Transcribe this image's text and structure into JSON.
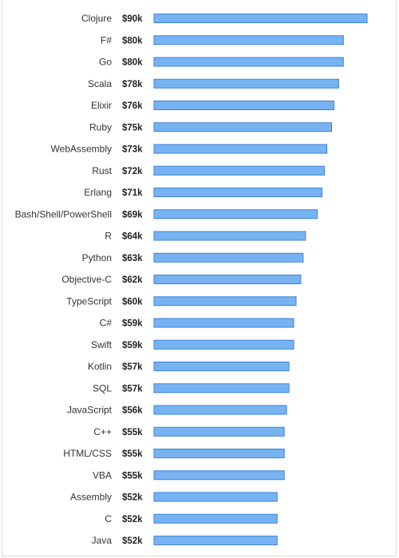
{
  "chart_data": {
    "type": "bar",
    "orientation": "horizontal",
    "categories": [
      "Clojure",
      "F#",
      "Go",
      "Scala",
      "Elixir",
      "Ruby",
      "WebAssembly",
      "Rust",
      "Erlang",
      "Bash/Shell/PowerShell",
      "R",
      "Python",
      "Objective-C",
      "TypeScript",
      "C#",
      "Swift",
      "Kotlin",
      "SQL",
      "JavaScript",
      "C++",
      "HTML/CSS",
      "VBA",
      "Assembly",
      "C",
      "Java"
    ],
    "values": [
      90,
      80,
      80,
      78,
      76,
      75,
      73,
      72,
      71,
      69,
      64,
      63,
      62,
      60,
      59,
      59,
      57,
      57,
      56,
      55,
      55,
      55,
      52,
      52,
      52
    ],
    "value_labels": [
      "$90k",
      "$80k",
      "$80k",
      "$78k",
      "$76k",
      "$75k",
      "$73k",
      "$72k",
      "$71k",
      "$69k",
      "$64k",
      "$63k",
      "$62k",
      "$60k",
      "$59k",
      "$59k",
      "$57k",
      "$57k",
      "$56k",
      "$55k",
      "$55k",
      "$55k",
      "$52k",
      "$52k",
      "$52k"
    ],
    "title": "",
    "xlabel": "",
    "ylabel": "",
    "xlim": [
      0,
      90
    ],
    "grid": false,
    "colors": {
      "bar_fill": "#77b3f2",
      "bar_stroke": "#3f82d6"
    }
  }
}
